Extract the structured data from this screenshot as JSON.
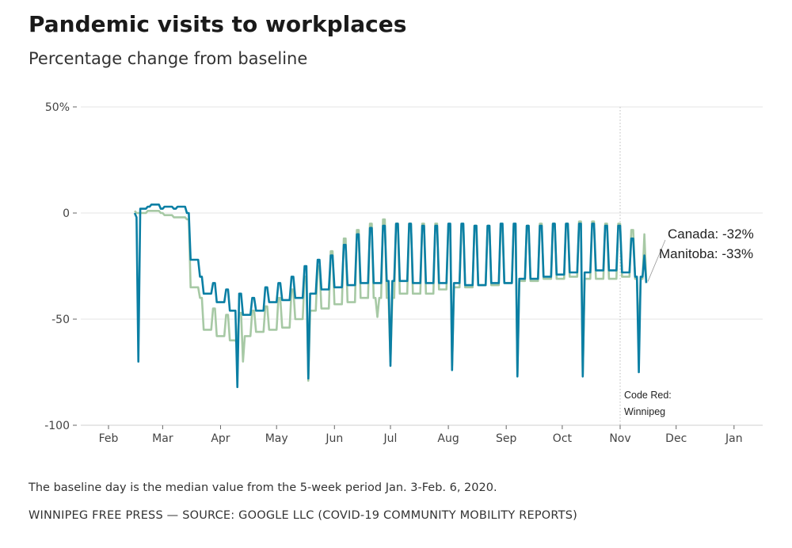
{
  "header": {
    "title": "Pandemic visits to workplaces",
    "subtitle": "Percentage change from baseline"
  },
  "footer": {
    "note": "The baseline day is the median value from the 5-week period Jan. 3-Feb. 6, 2020.",
    "source": "WINNIPEG FREE PRESS — SOURCE: GOOGLE LLC (COVID-19 COMMUNITY MOBILITY REPORTS)"
  },
  "chart_data": {
    "type": "line",
    "title": "Pandemic visits to workplaces",
    "subtitle": "Percentage change from baseline",
    "xlabel": "",
    "ylabel": "",
    "ylim": [
      -100,
      50
    ],
    "xlim": [
      "2020-01-22",
      "2021-01-22"
    ],
    "y_ticks": [
      {
        "value": 50,
        "label": "50%"
      },
      {
        "value": 0,
        "label": "0"
      },
      {
        "value": -50,
        "label": "-50"
      },
      {
        "value": -100,
        "label": "-100"
      }
    ],
    "x_ticks": [
      {
        "date": "2020-02-01",
        "label": "Feb"
      },
      {
        "date": "2020-03-01",
        "label": "Mar"
      },
      {
        "date": "2020-04-01",
        "label": "Apr"
      },
      {
        "date": "2020-05-01",
        "label": "May"
      },
      {
        "date": "2020-06-01",
        "label": "Jun"
      },
      {
        "date": "2020-07-01",
        "label": "Jul"
      },
      {
        "date": "2020-08-01",
        "label": "Aug"
      },
      {
        "date": "2020-09-01",
        "label": "Sep"
      },
      {
        "date": "2020-10-01",
        "label": "Oct"
      },
      {
        "date": "2020-11-01",
        "label": "Nov"
      },
      {
        "date": "2020-12-01",
        "label": "Dec"
      },
      {
        "date": "2021-01-01",
        "label": "Jan"
      }
    ],
    "grid": "horizontal",
    "encoding": "Daily values from 2020-02-15 to 2020-11-15; weekly arrays give weekday and weekend levels for weeks starting on the listed Monday; holidays override single days; last point is the latest value.",
    "start_date": "2020-02-15",
    "end_date": "2020-11-15",
    "first_week_monday": "2020-02-17",
    "series": [
      {
        "name": "Canada",
        "color": "#a7c9a5",
        "latest": -32,
        "latest_label": "Canada: -32%",
        "start_weekend": [
          1,
          0
        ],
        "weekday": [
          0,
          1,
          -1,
          -2,
          -35,
          -55,
          -58,
          -60,
          -58,
          -56,
          -55,
          -54,
          -50,
          -46,
          -45,
          -43,
          -42,
          -40,
          -40,
          -40,
          -38,
          -38,
          -38,
          -36,
          -35,
          -35,
          -34,
          -34,
          -33,
          -32,
          -32,
          -31,
          -31,
          -30,
          -31,
          -31,
          -31,
          -30,
          -31
        ],
        "weekend": [
          1,
          0,
          -2,
          -3,
          -40,
          -45,
          -48,
          -47,
          -46,
          -44,
          -40,
          -36,
          -30,
          -25,
          -18,
          -12,
          -8,
          -5,
          -3,
          -5,
          -5,
          -5,
          -5,
          -6,
          -6,
          -6,
          -6,
          -7,
          -6,
          -6,
          -5,
          -5,
          -5,
          -4,
          -4,
          -5,
          -5,
          -8,
          -10
        ],
        "holidays": [
          {
            "date": "2020-04-10",
            "value": -62
          },
          {
            "date": "2020-04-13",
            "value": -70
          },
          {
            "date": "2020-05-18",
            "value": -79
          },
          {
            "date": "2020-06-24",
            "value": -49
          },
          {
            "date": "2020-07-01",
            "value": -70
          },
          {
            "date": "2020-08-03",
            "value": -72
          },
          {
            "date": "2020-09-07",
            "value": -76
          },
          {
            "date": "2020-10-12",
            "value": -76
          },
          {
            "date": "2020-11-11",
            "value": -60
          }
        ]
      },
      {
        "name": "Manitoba",
        "color": "#0a7fa4",
        "latest": -33,
        "latest_label": "Manitoba: -33%",
        "start_weekend": [
          0,
          -2
        ],
        "weekday": [
          2,
          4,
          3,
          3,
          -22,
          -38,
          -42,
          -46,
          -48,
          -46,
          -42,
          -41,
          -40,
          -38,
          -36,
          -35,
          -34,
          -33,
          -33,
          -32,
          -32,
          -33,
          -33,
          -33,
          -33,
          -34,
          -34,
          -33,
          -33,
          -31,
          -31,
          -30,
          -29,
          -28,
          -28,
          -27,
          -27,
          -28,
          -30
        ],
        "weekend": [
          3,
          2,
          2,
          0,
          -30,
          -33,
          -36,
          -38,
          -40,
          -35,
          -33,
          -30,
          -25,
          -22,
          -20,
          -15,
          -10,
          -7,
          -6,
          -5,
          -5,
          -6,
          -6,
          -5,
          -5,
          -6,
          -6,
          -5,
          -5,
          -6,
          -6,
          -5,
          -5,
          -5,
          -5,
          -6,
          -6,
          -12,
          -20
        ],
        "holidays": [
          {
            "date": "2020-02-17",
            "value": -70
          },
          {
            "date": "2020-04-10",
            "value": -82
          },
          {
            "date": "2020-05-18",
            "value": -78
          },
          {
            "date": "2020-07-01",
            "value": -72
          },
          {
            "date": "2020-08-03",
            "value": -74
          },
          {
            "date": "2020-09-07",
            "value": -77
          },
          {
            "date": "2020-10-12",
            "value": -77
          },
          {
            "date": "2020-11-11",
            "value": -75
          }
        ]
      }
    ],
    "annotations": [
      {
        "date": "2020-11-01",
        "line1": "Code Red:",
        "line2": "Winnipeg"
      }
    ]
  }
}
